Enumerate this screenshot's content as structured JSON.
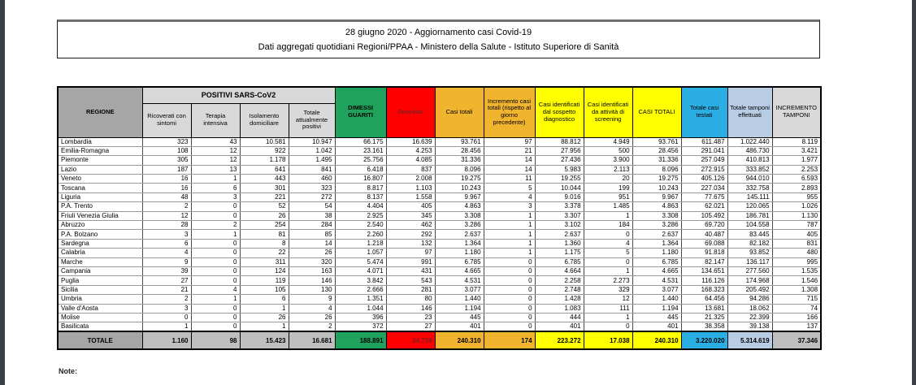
{
  "header": {
    "line1": "28 giugno 2020 - Aggiornamento casi Covid-19",
    "line2": "Dati aggregati quotidiani Regioni/PPAA - Ministero della Salute - Istituto Superiore di Sanità"
  },
  "footer": {
    "note_label": "Note:"
  },
  "colors": {
    "green": "#1FA35C",
    "red": "#FF0000",
    "red-text": "#7D1F1F",
    "orange": "#F0B42F",
    "yellow": "#FFFF00",
    "cyan": "#2BAEE4",
    "lblue": "#B8CCE4",
    "gray-dark": "#A6A6A6",
    "gray-mid": "#BFBFBF",
    "gray-light": "#D9D9D9",
    "edge": "#3A4046"
  },
  "table": {
    "group_header": "POSITIVI SARS-CoV2",
    "columns": [
      {
        "id": "regione",
        "label": "REGIONE"
      },
      {
        "id": "ricoverati",
        "label": "Ricoverati con sintomi"
      },
      {
        "id": "terapia-intensiva",
        "label": "Terapia intensiva"
      },
      {
        "id": "isolamento",
        "label": "Isolamento domiciliare"
      },
      {
        "id": "attualmente-positivi",
        "label": "Totale attualmente positivi"
      },
      {
        "id": "dimessi-guariti",
        "label": "DIMESSI GUARITI"
      },
      {
        "id": "deceduti",
        "label": "Deceduti"
      },
      {
        "id": "casi-totali",
        "label": "Casi totali"
      },
      {
        "id": "incremento-casi",
        "label": "Incremento casi totali (rispetto al giorno precedente)"
      },
      {
        "id": "sospetto-diagnostico",
        "label": "Casi identificati dal sospetto diagnostico"
      },
      {
        "id": "screening",
        "label": "Casi identificati da attività di screening"
      },
      {
        "id": "casi-totali-2",
        "label": "CASI TOTALI"
      },
      {
        "id": "casi-testati",
        "label": "Totale casi testati"
      },
      {
        "id": "tamponi",
        "label": "Totale tamponi effettuati"
      },
      {
        "id": "incremento-tamponi",
        "label": "INCREMENTO TAMPONI"
      }
    ],
    "rows": [
      [
        "Lombardia",
        "323",
        "43",
        "10.581",
        "10.947",
        "66.175",
        "16.639",
        "93.761",
        "97",
        "88.812",
        "4.949",
        "93.761",
        "611.487",
        "1.022.440",
        "8.119"
      ],
      [
        "Emilia-Romagna",
        "108",
        "12",
        "922",
        "1.042",
        "23.161",
        "4.253",
        "28.456",
        "21",
        "27.956",
        "500",
        "28.456",
        "291.041",
        "486.730",
        "3.421"
      ],
      [
        "Piemonte",
        "305",
        "12",
        "1.178",
        "1.495",
        "25.756",
        "4.085",
        "31.336",
        "14",
        "27.436",
        "3.900",
        "31.336",
        "257.049",
        "410.813",
        "1.977"
      ],
      [
        "Lazio",
        "187",
        "13",
        "641",
        "841",
        "6.418",
        "837",
        "8.096",
        "14",
        "5.983",
        "2.113",
        "8.096",
        "272.915",
        "333.852",
        "2.253"
      ],
      [
        "Veneto",
        "16",
        "1",
        "443",
        "460",
        "16.807",
        "2.008",
        "19.275",
        "11",
        "19.255",
        "20",
        "19.275",
        "405.126",
        "944.010",
        "6.593"
      ],
      [
        "Toscana",
        "16",
        "6",
        "301",
        "323",
        "8.817",
        "1.103",
        "10.243",
        "5",
        "10.044",
        "199",
        "10.243",
        "227.034",
        "332.758",
        "2.893"
      ],
      [
        "Liguria",
        "48",
        "3",
        "221",
        "272",
        "8.137",
        "1.558",
        "9.967",
        "4",
        "9.016",
        "951",
        "9.967",
        "77.675",
        "145.111",
        "955"
      ],
      [
        "P.A. Trento",
        "2",
        "0",
        "52",
        "54",
        "4.404",
        "405",
        "4.863",
        "3",
        "3.378",
        "1.485",
        "4.863",
        "62.021",
        "120.065",
        "1.026"
      ],
      [
        "Friuli Venezia Giulia",
        "12",
        "0",
        "26",
        "38",
        "2.925",
        "345",
        "3.308",
        "1",
        "3.307",
        "1",
        "3.308",
        "105.492",
        "186.781",
        "1.130"
      ],
      [
        "Abruzzo",
        "28",
        "2",
        "254",
        "284",
        "2.540",
        "462",
        "3.286",
        "1",
        "3.102",
        "184",
        "3.286",
        "69.720",
        "104.558",
        "787"
      ],
      [
        "P.A. Bolzano",
        "3",
        "1",
        "81",
        "85",
        "2.260",
        "292",
        "2.637",
        "1",
        "2.637",
        "0",
        "2.637",
        "40.487",
        "83.445",
        "405"
      ],
      [
        "Sardegna",
        "6",
        "0",
        "8",
        "14",
        "1.218",
        "132",
        "1.364",
        "1",
        "1.360",
        "4",
        "1.364",
        "69.088",
        "82.182",
        "831"
      ],
      [
        "Calabria",
        "4",
        "0",
        "22",
        "26",
        "1.057",
        "97",
        "1.180",
        "1",
        "1.175",
        "5",
        "1.180",
        "91.818",
        "93.852",
        "480"
      ],
      [
        "Marche",
        "9",
        "0",
        "311",
        "320",
        "5.474",
        "991",
        "6.785",
        "0",
        "6.785",
        "0",
        "6.785",
        "82.147",
        "136.117",
        "995"
      ],
      [
        "Campania",
        "39",
        "0",
        "124",
        "163",
        "4.071",
        "431",
        "4.665",
        "0",
        "4.664",
        "1",
        "4.665",
        "134.651",
        "277.560",
        "1.535"
      ],
      [
        "Puglia",
        "27",
        "0",
        "119",
        "146",
        "3.842",
        "543",
        "4.531",
        "0",
        "2.258",
        "2.273",
        "4.531",
        "116.126",
        "174.968",
        "1.546"
      ],
      [
        "Sicilia",
        "21",
        "4",
        "105",
        "130",
        "2.666",
        "281",
        "3.077",
        "0",
        "2.748",
        "329",
        "3.077",
        "168.323",
        "205.492",
        "1.308"
      ],
      [
        "Umbria",
        "2",
        "1",
        "6",
        "9",
        "1.351",
        "80",
        "1.440",
        "0",
        "1.428",
        "12",
        "1.440",
        "64.456",
        "94.286",
        "715"
      ],
      [
        "Valle d'Aosta",
        "3",
        "0",
        "1",
        "4",
        "1.044",
        "146",
        "1.194",
        "0",
        "1.083",
        "111",
        "1.194",
        "13.681",
        "18.062",
        "74"
      ],
      [
        "Molise",
        "0",
        "0",
        "26",
        "26",
        "396",
        "23",
        "445",
        "0",
        "444",
        "1",
        "445",
        "21.325",
        "22.399",
        "166"
      ],
      [
        "Basilicata",
        "1",
        "0",
        "1",
        "2",
        "372",
        "27",
        "401",
        "0",
        "401",
        "0",
        "401",
        "38.358",
        "39.138",
        "137"
      ]
    ],
    "total": [
      "TOTALE",
      "1.160",
      "98",
      "15.423",
      "16.681",
      "188.891",
      "34.738",
      "240.310",
      "174",
      "223.272",
      "17.038",
      "240.310",
      "3.220.020",
      "5.314.619",
      "37.346"
    ]
  }
}
